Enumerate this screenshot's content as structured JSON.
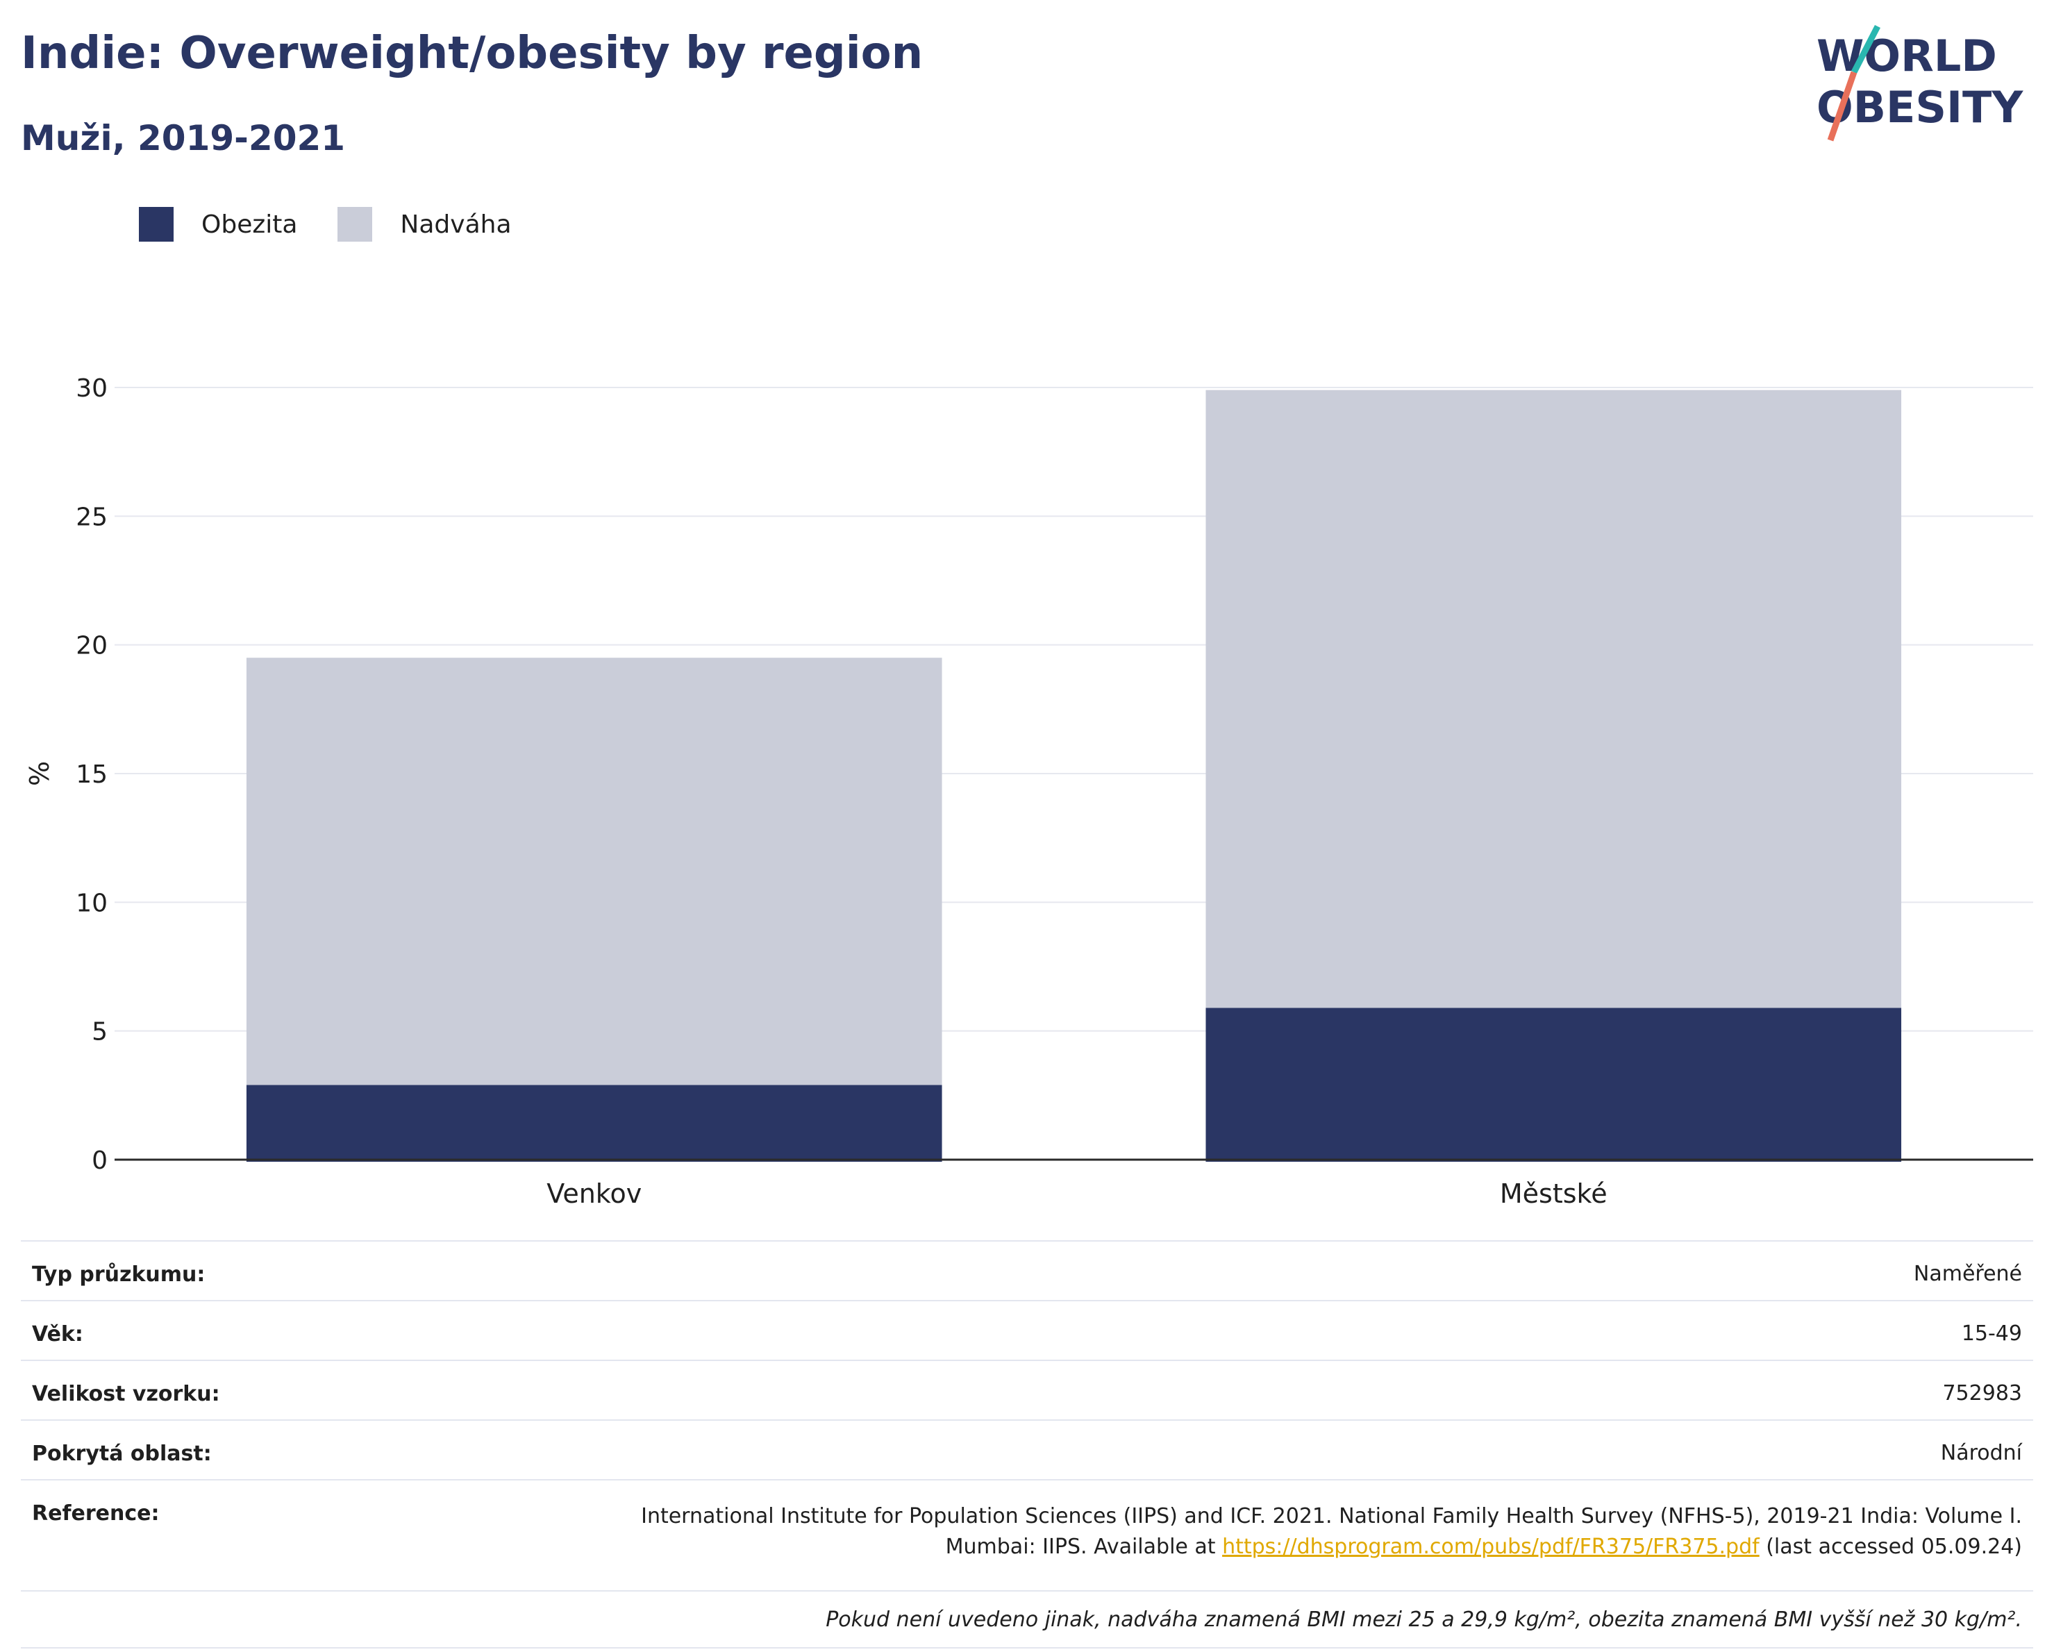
{
  "header": {
    "title": "Indie: Overweight/obesity by region",
    "subtitle": "Muži, 2019-2021"
  },
  "logo": {
    "line1": "WORLD",
    "line2": "OBESITY"
  },
  "colors": {
    "obesity": "#2a3664",
    "overweight": "#cacdd9",
    "accent": "#2a3664",
    "link": "#e0a800"
  },
  "chart_data": {
    "type": "bar",
    "stacked": true,
    "categories": [
      "Venkov",
      "Městské"
    ],
    "series": [
      {
        "name": "Obezita",
        "values": [
          2.9,
          5.9
        ]
      },
      {
        "name": "Nadváha",
        "values": [
          16.6,
          24.0
        ]
      }
    ],
    "ylabel": "%",
    "xlabel": "",
    "ylim": [
      0,
      30
    ],
    "yticks": [
      0,
      5,
      10,
      15,
      20,
      25,
      30
    ],
    "grid": true,
    "legend": "top-left"
  },
  "info": {
    "survey_type_label": "Typ průzkumu:",
    "survey_type_value": "Naměřené",
    "age_label": "Věk:",
    "age_value": "15-49",
    "sample_label": "Velikost vzorku:",
    "sample_value": "752983",
    "area_label": "Pokrytá oblast:",
    "area_value": "Národní",
    "reference_label": "Reference:",
    "reference_line1": "International Institute for Population Sciences (IIPS) and ICF. 2021. National Family Health Survey (NFHS-5), 2019-21 India: Volume I.",
    "reference_prefix": "Mumbai: IIPS. Available at ",
    "reference_link": "https://dhsprogram.com/pubs/pdf/FR375/FR375.pdf",
    "reference_suffix": " (last accessed 05.09.24)",
    "footnote": "Pokud není uvedeno jinak, nadváha znamená BMI mezi 25 a 29,9 kg/m², obezita znamená BMI vyšší než 30 kg/m²."
  }
}
